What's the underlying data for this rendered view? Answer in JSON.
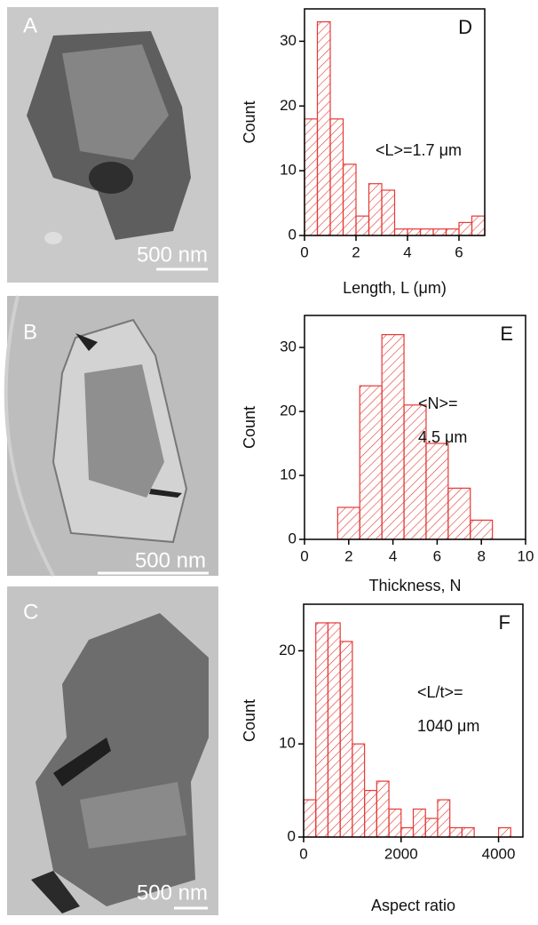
{
  "images": [
    {
      "label": "A",
      "scale_bar": "500 nm"
    },
    {
      "label": "B",
      "scale_bar": "500 nm"
    },
    {
      "label": "C",
      "scale_bar": "500 nm"
    }
  ],
  "chart_data": [
    {
      "type": "histogram",
      "panel_label": "D",
      "xlabel": "Length, L (μm)",
      "ylabel": "Count",
      "annotations": [
        "<L>=1.7 μm"
      ],
      "color": "#e53935",
      "bins": [
        0,
        0.5,
        1,
        1.5,
        2,
        2.5,
        3,
        3.5,
        4,
        4.5,
        5,
        5.5,
        6,
        6.5,
        7
      ],
      "values": [
        18,
        33,
        18,
        11,
        3,
        8,
        7,
        1,
        1,
        1,
        1,
        1,
        2,
        3
      ],
      "xlim": [
        0,
        7
      ],
      "ylim": [
        0,
        35
      ],
      "xticks": [
        0,
        2,
        4,
        6
      ],
      "yticks": [
        0,
        10,
        20,
        30
      ]
    },
    {
      "type": "histogram",
      "panel_label": "E",
      "xlabel": "Thickness, N",
      "ylabel": "Count",
      "annotations": [
        "<N>=",
        "4.5 μm"
      ],
      "color": "#e53935",
      "bins": [
        1.5,
        2.5,
        3.5,
        4.5,
        5.5,
        6.5,
        7.5,
        8.5
      ],
      "values": [
        5,
        24,
        32,
        21,
        15,
        8,
        3
      ],
      "xlim": [
        0,
        10
      ],
      "ylim": [
        0,
        35
      ],
      "xticks": [
        0,
        2,
        4,
        6,
        8,
        10
      ],
      "yticks": [
        0,
        10,
        20,
        30
      ]
    },
    {
      "type": "histogram",
      "panel_label": "F",
      "xlabel": "Aspect ratio",
      "ylabel": "Count",
      "annotations": [
        "<L/t>=",
        "1040 μm"
      ],
      "color": "#e53935",
      "bins": [
        0,
        250,
        500,
        750,
        1000,
        1250,
        1500,
        1750,
        2000,
        2250,
        2500,
        2750,
        3000,
        3250,
        3500,
        3750,
        4000,
        4250
      ],
      "values": [
        4,
        23,
        23,
        21,
        10,
        5,
        6,
        3,
        1,
        3,
        2,
        4,
        1,
        1,
        0,
        0,
        1
      ],
      "xlim": [
        0,
        4500
      ],
      "ylim": [
        0,
        25
      ],
      "xticks": [
        0,
        2000,
        4000
      ],
      "yticks": [
        0,
        10,
        20
      ]
    }
  ]
}
